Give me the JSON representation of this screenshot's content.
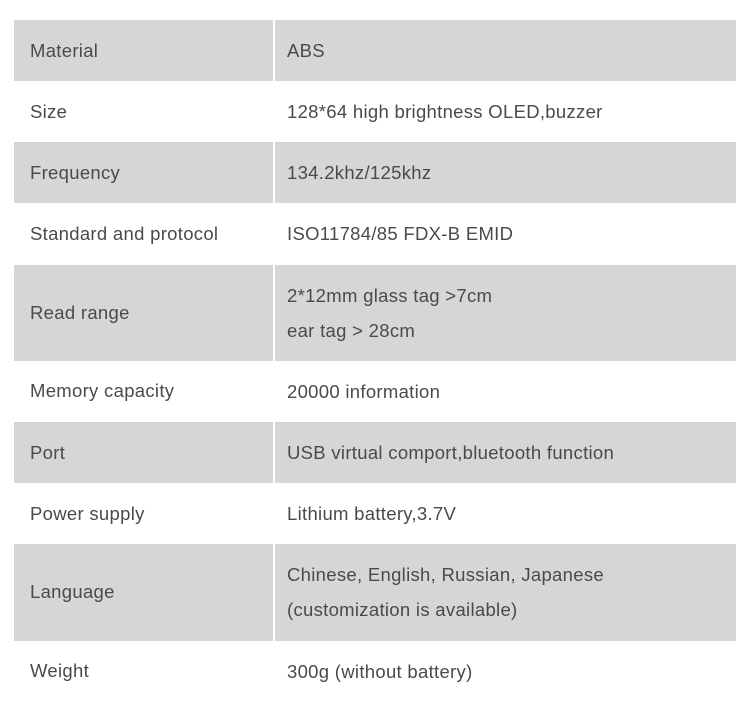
{
  "table": {
    "background_shaded": "#d6d6d6",
    "background_unshaded": "#ffffff",
    "text_color": "#4a4a4a",
    "font_size": 18.5,
    "label_width": 261,
    "rows": [
      {
        "label": "Material",
        "value": "ABS",
        "shaded": true
      },
      {
        "label": "Size",
        "value": "128*64 high brightness OLED,buzzer",
        "shaded": false
      },
      {
        "label": "Frequency",
        "value": "134.2khz/125khz",
        "shaded": true
      },
      {
        "label": "Standard and protocol",
        "value": "ISO11784/85  FDX-B EMID",
        "shaded": false
      },
      {
        "label": "Read range",
        "value": "2*12mm glass tag >7cm\near tag > 28cm",
        "shaded": true,
        "multiline": true
      },
      {
        "label": "Memory capacity",
        "value": "20000 information",
        "shaded": false
      },
      {
        "label": "Port",
        "value": "USB virtual comport,bluetooth function",
        "shaded": true
      },
      {
        "label": "Power supply",
        "value": "Lithium battery,3.7V",
        "shaded": false
      },
      {
        "label": "Language",
        "value": "Chinese, English, Russian, Japanese\n(customization is available)",
        "shaded": true,
        "multiline": true
      },
      {
        "label": "Weight",
        "value": "300g (without battery)",
        "shaded": false
      }
    ]
  }
}
